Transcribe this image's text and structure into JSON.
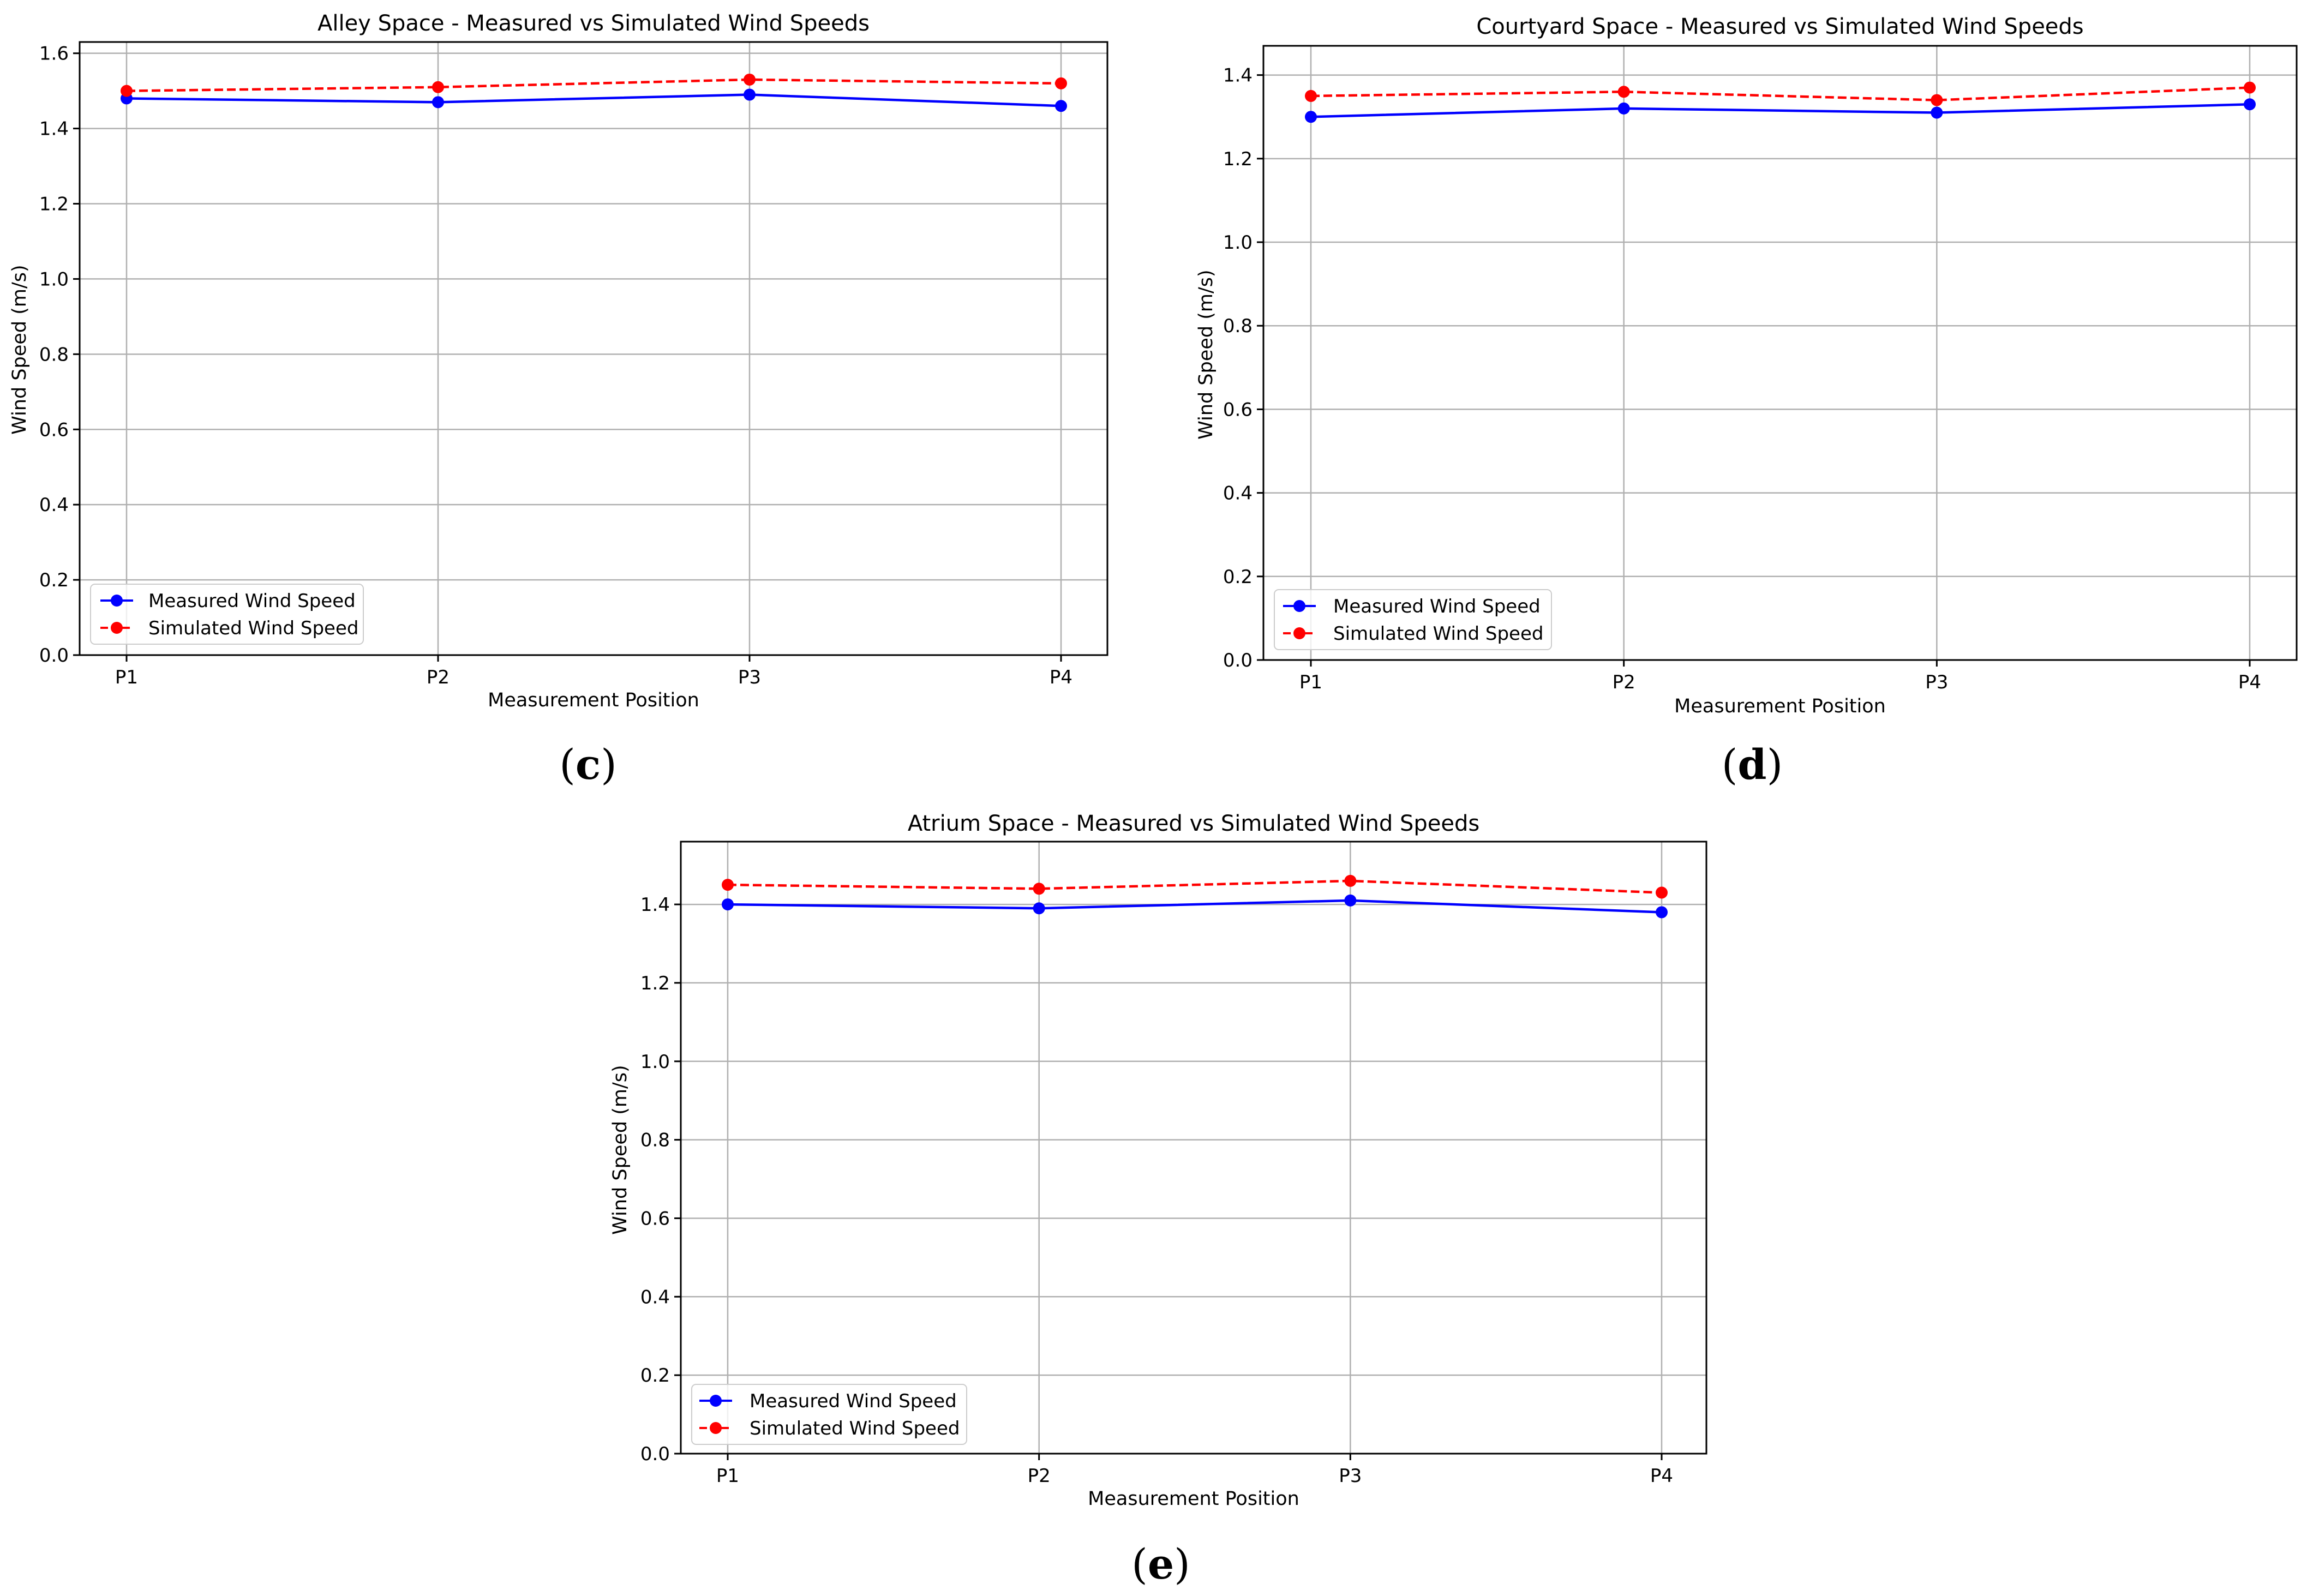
{
  "figure": {
    "panel_labels": [
      {
        "open": "(",
        "letter": "c",
        "close": ")"
      },
      {
        "open": "(",
        "letter": "d",
        "close": ")"
      },
      {
        "open": "(",
        "letter": "e",
        "close": ")"
      }
    ]
  },
  "colors": {
    "measured": "#0000ff",
    "simulated": "#ff0000",
    "grid": "#b0b0b0",
    "axes": "#000000"
  },
  "chart_data": [
    {
      "type": "line",
      "title": "Alley Space - Measured vs Simulated Wind Speeds",
      "xlabel": "Measurement Position",
      "ylabel": "Wind Speed (m/s)",
      "categories": [
        "P1",
        "P2",
        "P3",
        "P4"
      ],
      "ylim": [
        0,
        1.63
      ],
      "yticks": [
        "0.0",
        "0.2",
        "0.4",
        "0.6",
        "0.8",
        "1.0",
        "1.2",
        "1.4",
        "1.6"
      ],
      "grid": true,
      "legend_position": "lower-left",
      "series": [
        {
          "name": "Measured Wind Speed",
          "style": "solid",
          "values": [
            1.48,
            1.47,
            1.49,
            1.46
          ]
        },
        {
          "name": "Simulated Wind Speed",
          "style": "dashed",
          "values": [
            1.5,
            1.51,
            1.53,
            1.52
          ]
        }
      ]
    },
    {
      "type": "line",
      "title": "Courtyard Space - Measured vs Simulated Wind Speeds",
      "xlabel": "Measurement Position",
      "ylabel": "Wind Speed (m/s)",
      "categories": [
        "P1",
        "P2",
        "P3",
        "P4"
      ],
      "ylim": [
        0,
        1.47
      ],
      "yticks": [
        "0.0",
        "0.2",
        "0.4",
        "0.6",
        "0.8",
        "1.0",
        "1.2",
        "1.4"
      ],
      "grid": true,
      "legend_position": "lower-left",
      "series": [
        {
          "name": "Measured Wind Speed",
          "style": "solid",
          "values": [
            1.3,
            1.32,
            1.31,
            1.33
          ]
        },
        {
          "name": "Simulated Wind Speed",
          "style": "dashed",
          "values": [
            1.35,
            1.36,
            1.34,
            1.37
          ]
        }
      ]
    },
    {
      "type": "line",
      "title": "Atrium Space - Measured vs Simulated Wind Speeds",
      "xlabel": "Measurement Position",
      "ylabel": "Wind Speed (m/s)",
      "categories": [
        "P1",
        "P2",
        "P3",
        "P4"
      ],
      "ylim": [
        0,
        1.56
      ],
      "yticks": [
        "0.0",
        "0.2",
        "0.4",
        "0.6",
        "0.8",
        "1.0",
        "1.2",
        "1.4"
      ],
      "grid": true,
      "legend_position": "lower-left",
      "series": [
        {
          "name": "Measured Wind Speed",
          "style": "solid",
          "values": [
            1.4,
            1.39,
            1.41,
            1.38
          ]
        },
        {
          "name": "Simulated Wind Speed",
          "style": "dashed",
          "values": [
            1.45,
            1.44,
            1.46,
            1.43
          ]
        }
      ]
    }
  ]
}
